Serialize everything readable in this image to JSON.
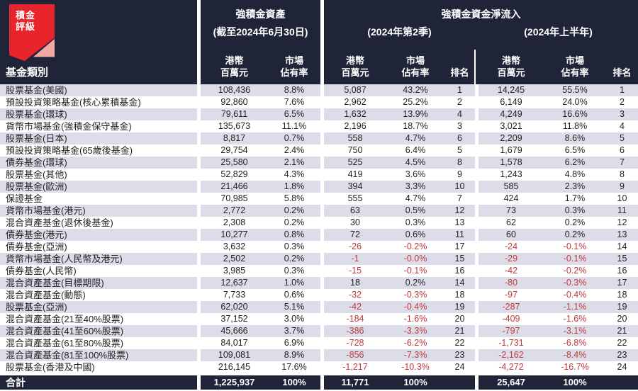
{
  "chart_data": {
    "type": "table",
    "brand": {
      "line1": "積金",
      "line2": "評級"
    },
    "category_header": "基金類別",
    "group_assets": {
      "title": "強積金資產",
      "subtitle": "(截至2024年6月30日)"
    },
    "flow_title": "強積金資金淨流入",
    "group_q2": {
      "subtitle": "(2024年第2季)"
    },
    "group_h1": {
      "subtitle": "(2024年上半年)"
    },
    "subcols": {
      "amount_l1": "港幣",
      "amount_l2": "百萬元",
      "share_l1": "市場",
      "share_l2": "佔有率",
      "rank": "排名"
    },
    "columns": [
      "基金類別",
      "強積金資產 港幣百萬元",
      "強積金資產 市場佔有率",
      "2024年第2季 港幣百萬元",
      "2024年第2季 市場佔有率",
      "2024年第2季 排名",
      "2024年上半年 港幣百萬元",
      "2024年上半年 市場佔有率",
      "2024年上半年 排名"
    ],
    "rows": [
      {
        "name": "股票基金(美國)",
        "assets": "108,436",
        "assets_share": "8.8%",
        "q2_flow": "5,087",
        "q2_share": "43.2%",
        "q2_rank": "1",
        "h1_flow": "14,245",
        "h1_share": "55.5%",
        "h1_rank": "1"
      },
      {
        "name": "預設投資策略基金(核心累積基金)",
        "assets": "92,860",
        "assets_share": "7.6%",
        "q2_flow": "2,962",
        "q2_share": "25.2%",
        "q2_rank": "2",
        "h1_flow": "6,149",
        "h1_share": "24.0%",
        "h1_rank": "2"
      },
      {
        "name": "股票基金(環球)",
        "assets": "79,611",
        "assets_share": "6.5%",
        "q2_flow": "1,632",
        "q2_share": "13.9%",
        "q2_rank": "4",
        "h1_flow": "4,249",
        "h1_share": "16.6%",
        "h1_rank": "3"
      },
      {
        "name": "貨幣市場基金(強積金保守基金)",
        "assets": "135,673",
        "assets_share": "11.1%",
        "q2_flow": "2,196",
        "q2_share": "18.7%",
        "q2_rank": "3",
        "h1_flow": "3,021",
        "h1_share": "11.8%",
        "h1_rank": "4"
      },
      {
        "name": "股票基金(日本)",
        "assets": "8,817",
        "assets_share": "0.7%",
        "q2_flow": "558",
        "q2_share": "4.7%",
        "q2_rank": "6",
        "h1_flow": "2,209",
        "h1_share": "8.6%",
        "h1_rank": "5"
      },
      {
        "name": "預設投資策略基金(65歲後基金)",
        "assets": "29,754",
        "assets_share": "2.4%",
        "q2_flow": "750",
        "q2_share": "6.4%",
        "q2_rank": "5",
        "h1_flow": "1,679",
        "h1_share": "6.5%",
        "h1_rank": "6"
      },
      {
        "name": "債券基金(環球)",
        "assets": "25,580",
        "assets_share": "2.1%",
        "q2_flow": "525",
        "q2_share": "4.5%",
        "q2_rank": "8",
        "h1_flow": "1,578",
        "h1_share": "6.2%",
        "h1_rank": "7"
      },
      {
        "name": "股票基金(其他)",
        "assets": "52,829",
        "assets_share": "4.3%",
        "q2_flow": "419",
        "q2_share": "3.6%",
        "q2_rank": "9",
        "h1_flow": "1,243",
        "h1_share": "4.8%",
        "h1_rank": "8"
      },
      {
        "name": "股票基金(歐洲)",
        "assets": "21,466",
        "assets_share": "1.8%",
        "q2_flow": "394",
        "q2_share": "3.3%",
        "q2_rank": "10",
        "h1_flow": "585",
        "h1_share": "2.3%",
        "h1_rank": "9"
      },
      {
        "name": "保證基金",
        "assets": "70,985",
        "assets_share": "5.8%",
        "q2_flow": "555",
        "q2_share": "4.7%",
        "q2_rank": "7",
        "h1_flow": "424",
        "h1_share": "1.7%",
        "h1_rank": "10"
      },
      {
        "name": "貨幣市場基金(港元)",
        "assets": "2,772",
        "assets_share": "0.2%",
        "q2_flow": "63",
        "q2_share": "0.5%",
        "q2_rank": "12",
        "h1_flow": "73",
        "h1_share": "0.3%",
        "h1_rank": "11"
      },
      {
        "name": "混合資產基金(退休後基金)",
        "assets": "2,308",
        "assets_share": "0.2%",
        "q2_flow": "30",
        "q2_share": "0.3%",
        "q2_rank": "13",
        "h1_flow": "62",
        "h1_share": "0.2%",
        "h1_rank": "12"
      },
      {
        "name": "債券基金(港元)",
        "assets": "10,277",
        "assets_share": "0.8%",
        "q2_flow": "72",
        "q2_share": "0.6%",
        "q2_rank": "11",
        "h1_flow": "60",
        "h1_share": "0.2%",
        "h1_rank": "13"
      },
      {
        "name": "債券基金(亞洲)",
        "assets": "3,632",
        "assets_share": "0.3%",
        "q2_flow": "-26",
        "q2_share": "-0.2%",
        "q2_rank": "17",
        "h1_flow": "-24",
        "h1_share": "-0.1%",
        "h1_rank": "14"
      },
      {
        "name": "貨幣市場基金(人民幣及港元)",
        "assets": "2,502",
        "assets_share": "0.2%",
        "q2_flow": "-1",
        "q2_share": "-0.0%",
        "q2_rank": "15",
        "h1_flow": "-29",
        "h1_share": "-0.1%",
        "h1_rank": "15"
      },
      {
        "name": "債券基金(人民幣)",
        "assets": "3,985",
        "assets_share": "0.3%",
        "q2_flow": "-15",
        "q2_share": "-0.1%",
        "q2_rank": "16",
        "h1_flow": "-42",
        "h1_share": "-0.2%",
        "h1_rank": "16"
      },
      {
        "name": "混合資產基金(目標期限)",
        "assets": "12,637",
        "assets_share": "1.0%",
        "q2_flow": "18",
        "q2_share": "0.2%",
        "q2_rank": "14",
        "h1_flow": "-80",
        "h1_share": "-0.3%",
        "h1_rank": "17"
      },
      {
        "name": "混合資產基金(動態)",
        "assets": "7,733",
        "assets_share": "0.6%",
        "q2_flow": "-32",
        "q2_share": "-0.3%",
        "q2_rank": "18",
        "h1_flow": "-97",
        "h1_share": "-0.4%",
        "h1_rank": "18"
      },
      {
        "name": "股票基金(亞洲)",
        "assets": "62,020",
        "assets_share": "5.1%",
        "q2_flow": "-42",
        "q2_share": "-0.4%",
        "q2_rank": "19",
        "h1_flow": "-287",
        "h1_share": "-1.1%",
        "h1_rank": "19"
      },
      {
        "name": "混合資產基金(21至40%股票)",
        "assets": "37,152",
        "assets_share": "3.0%",
        "q2_flow": "-184",
        "q2_share": "-1.6%",
        "q2_rank": "20",
        "h1_flow": "-409",
        "h1_share": "-1.6%",
        "h1_rank": "20"
      },
      {
        "name": "混合資產基金(41至60%股票)",
        "assets": "45,666",
        "assets_share": "3.7%",
        "q2_flow": "-386",
        "q2_share": "-3.3%",
        "q2_rank": "21",
        "h1_flow": "-797",
        "h1_share": "-3.1%",
        "h1_rank": "21"
      },
      {
        "name": "混合資產基金(61至80%股票)",
        "assets": "84,017",
        "assets_share": "6.9%",
        "q2_flow": "-728",
        "q2_share": "-6.2%",
        "q2_rank": "22",
        "h1_flow": "-1,731",
        "h1_share": "-6.8%",
        "h1_rank": "22"
      },
      {
        "name": "混合資產基金(81至100%股票)",
        "assets": "109,081",
        "assets_share": "8.9%",
        "q2_flow": "-856",
        "q2_share": "-7.3%",
        "q2_rank": "23",
        "h1_flow": "-2,162",
        "h1_share": "-8.4%",
        "h1_rank": "23"
      },
      {
        "name": "股票基金(香港及中國)",
        "assets": "216,145",
        "assets_share": "17.6%",
        "q2_flow": "-1,217",
        "q2_share": "-10.3%",
        "q2_rank": "24",
        "h1_flow": "-4,272",
        "h1_share": "-16.7%",
        "h1_rank": "24"
      }
    ],
    "total": {
      "label": "合計",
      "assets": "1,225,937",
      "assets_share": "100%",
      "q2_flow": "11,771",
      "q2_share": "100%",
      "h1_flow": "25,647",
      "h1_share": "100%"
    },
    "colors": {
      "header_bg": "#1f2438",
      "stripe": "#dcdde9",
      "negative": "#c0393b",
      "brand_red": "#e8242d",
      "brand_pink": "#f1a9a1"
    }
  }
}
